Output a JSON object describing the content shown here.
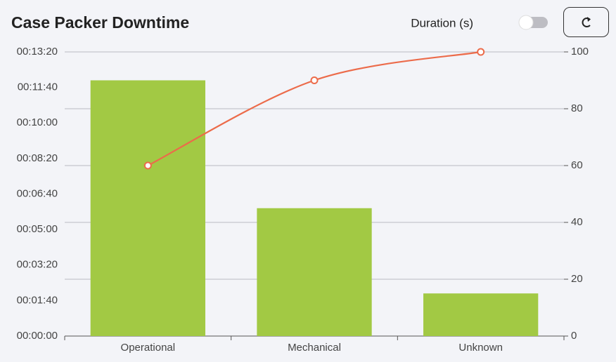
{
  "header": {
    "title": "Case Packer Downtime",
    "toggle_label": "Duration (s)"
  },
  "chart_data": {
    "type": "pareto",
    "categories": [
      "Operational",
      "Mechanical",
      "Unknown"
    ],
    "values": [
      720,
      360,
      120
    ],
    "color": "#a2c944",
    "line_values": [
      60,
      90,
      100
    ],
    "line_color": "#ec6b4a",
    "ylim": [
      0,
      800
    ],
    "yticks": [
      {
        "value": 0,
        "label": "00:00:00"
      },
      {
        "value": 100,
        "label": "00:01:40"
      },
      {
        "value": 200,
        "label": "00:03:20"
      },
      {
        "value": 300,
        "label": "00:05:00"
      },
      {
        "value": 400,
        "label": "00:06:40"
      },
      {
        "value": 500,
        "label": "00:08:20"
      },
      {
        "value": 600,
        "label": "00:10:00"
      },
      {
        "value": 700,
        "label": "00:11:40"
      },
      {
        "value": 800,
        "label": "00:13:20"
      }
    ],
    "y2lim": [
      0,
      100
    ],
    "y2ticks": [
      0,
      20,
      40,
      60,
      80,
      100
    ],
    "grid": true
  }
}
